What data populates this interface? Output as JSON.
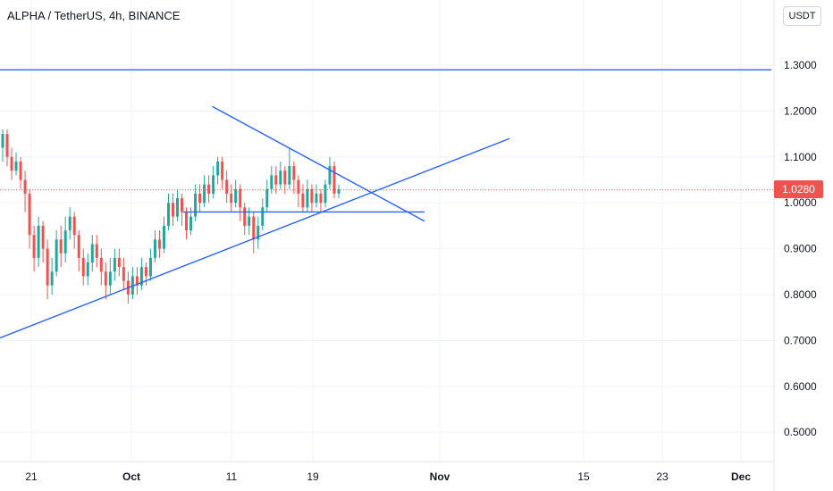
{
  "header": {
    "symbol": "ALPHA / TetherUS",
    "interval": "4h",
    "exchange": "BINANCE",
    "title": "ALPHA / TetherUS, 4h, BINANCE"
  },
  "currency_button": "USDT",
  "last_price": "1.0280",
  "colors": {
    "up": "#26a69a",
    "down": "#ef5350",
    "drawing": "#2962ff",
    "grid": "#f0f3fa",
    "price_line": "#ef5350"
  },
  "chart_data": {
    "type": "candlestick",
    "ylim": [
      0.4,
      1.4
    ],
    "y_ticks": [
      "1.3000",
      "1.2000",
      "1.1000",
      "1.0000",
      "0.9000",
      "0.8000",
      "0.7000",
      "0.6000",
      "0.5000"
    ],
    "x_ticks": [
      "21",
      "Oct",
      "11",
      "19",
      "Nov",
      "15",
      "23",
      "Dec"
    ],
    "candles": [
      [
        1.12,
        1.15,
        1.16,
        1.09
      ],
      [
        1.15,
        1.1,
        1.16,
        1.08
      ],
      [
        1.1,
        1.07,
        1.12,
        1.05
      ],
      [
        1.07,
        1.09,
        1.11,
        1.06
      ],
      [
        1.09,
        1.05,
        1.1,
        1.03
      ],
      [
        1.05,
        1.02,
        1.07,
        0.98
      ],
      [
        1.02,
        0.93,
        1.03,
        0.9
      ],
      [
        0.93,
        0.88,
        0.95,
        0.85
      ],
      [
        0.88,
        0.95,
        0.97,
        0.86
      ],
      [
        0.95,
        0.9,
        0.96,
        0.87
      ],
      [
        0.9,
        0.82,
        0.92,
        0.79
      ],
      [
        0.82,
        0.85,
        0.88,
        0.8
      ],
      [
        0.85,
        0.92,
        0.94,
        0.84
      ],
      [
        0.92,
        0.89,
        0.95,
        0.86
      ],
      [
        0.89,
        0.94,
        0.97,
        0.87
      ],
      [
        0.94,
        0.97,
        0.99,
        0.92
      ],
      [
        0.97,
        0.93,
        0.98,
        0.9
      ],
      [
        0.93,
        0.88,
        0.94,
        0.85
      ],
      [
        0.88,
        0.84,
        0.9,
        0.82
      ],
      [
        0.84,
        0.87,
        0.89,
        0.82
      ],
      [
        0.87,
        0.91,
        0.93,
        0.85
      ],
      [
        0.91,
        0.88,
        0.93,
        0.86
      ],
      [
        0.88,
        0.85,
        0.9,
        0.82
      ],
      [
        0.85,
        0.82,
        0.87,
        0.79
      ],
      [
        0.82,
        0.85,
        0.88,
        0.8
      ],
      [
        0.85,
        0.88,
        0.9,
        0.83
      ],
      [
        0.88,
        0.86,
        0.9,
        0.84
      ],
      [
        0.86,
        0.83,
        0.88,
        0.81
      ],
      [
        0.83,
        0.8,
        0.85,
        0.78
      ],
      [
        0.8,
        0.84,
        0.86,
        0.79
      ],
      [
        0.84,
        0.82,
        0.86,
        0.8
      ],
      [
        0.82,
        0.86,
        0.88,
        0.81
      ],
      [
        0.86,
        0.84,
        0.87,
        0.82
      ],
      [
        0.84,
        0.88,
        0.9,
        0.83
      ],
      [
        0.88,
        0.92,
        0.94,
        0.87
      ],
      [
        0.92,
        0.9,
        0.94,
        0.88
      ],
      [
        0.9,
        0.95,
        0.97,
        0.89
      ],
      [
        0.95,
        1.0,
        1.02,
        0.94
      ],
      [
        1.0,
        0.97,
        1.02,
        0.95
      ],
      [
        0.97,
        1.01,
        1.03,
        0.96
      ],
      [
        1.01,
        0.98,
        1.02,
        0.95
      ],
      [
        0.98,
        0.94,
        0.99,
        0.92
      ],
      [
        0.94,
        0.97,
        0.99,
        0.93
      ],
      [
        0.97,
        1.02,
        1.04,
        0.96
      ],
      [
        1.02,
        1.0,
        1.04,
        0.98
      ],
      [
        1.0,
        1.04,
        1.06,
        0.99
      ],
      [
        1.04,
        1.02,
        1.06,
        1.0
      ],
      [
        1.02,
        1.06,
        1.08,
        1.01
      ],
      [
        1.06,
        1.09,
        1.1,
        1.04
      ],
      [
        1.09,
        1.05,
        1.1,
        1.03
      ],
      [
        1.05,
        1.02,
        1.07,
        1.0
      ],
      [
        1.02,
        1.0,
        1.04,
        0.98
      ],
      [
        1.0,
        1.03,
        1.05,
        0.99
      ],
      [
        1.03,
        0.99,
        1.04,
        0.96
      ],
      [
        0.99,
        0.95,
        1.0,
        0.93
      ],
      [
        0.95,
        0.97,
        0.99,
        0.93
      ],
      [
        0.97,
        0.92,
        0.98,
        0.89
      ],
      [
        0.92,
        0.95,
        0.97,
        0.9
      ],
      [
        0.95,
        0.99,
        1.01,
        0.94
      ],
      [
        0.99,
        1.03,
        1.05,
        0.98
      ],
      [
        1.03,
        1.06,
        1.08,
        1.02
      ],
      [
        1.06,
        1.04,
        1.08,
        1.02
      ],
      [
        1.04,
        1.07,
        1.09,
        1.03
      ],
      [
        1.07,
        1.04,
        1.08,
        1.02
      ],
      [
        1.04,
        1.08,
        1.12,
        1.03
      ],
      [
        1.08,
        1.05,
        1.09,
        1.02
      ],
      [
        1.05,
        1.02,
        1.06,
        0.99
      ],
      [
        1.02,
        0.99,
        1.04,
        0.98
      ],
      [
        0.99,
        1.03,
        1.05,
        0.98
      ],
      [
        1.03,
        1.0,
        1.04,
        0.98
      ],
      [
        1.0,
        1.02,
        1.04,
        0.99
      ],
      [
        1.02,
        1.0,
        1.03,
        0.98
      ],
      [
        1.0,
        1.04,
        1.05,
        0.99
      ],
      [
        1.04,
        1.08,
        1.1,
        1.03
      ],
      [
        1.08,
        1.02,
        1.09,
        1.01
      ],
      [
        1.02,
        1.03,
        1.04,
        1.01
      ]
    ],
    "drawings": [
      {
        "name": "upper-trendline",
        "from": [
          9.5,
          1.21
        ],
        "to": [
          19.0,
          0.96
        ]
      },
      {
        "name": "lower-trendline",
        "from": [
          -0.3,
          0.7
        ],
        "to": [
          22.8,
          1.14
        ]
      },
      {
        "name": "support-line",
        "from": [
          8.2,
          0.98
        ],
        "to": [
          19.0,
          0.98
        ]
      },
      {
        "name": "resistance-line",
        "from": [
          -1,
          1.29
        ],
        "to": [
          34,
          1.29
        ]
      }
    ]
  }
}
